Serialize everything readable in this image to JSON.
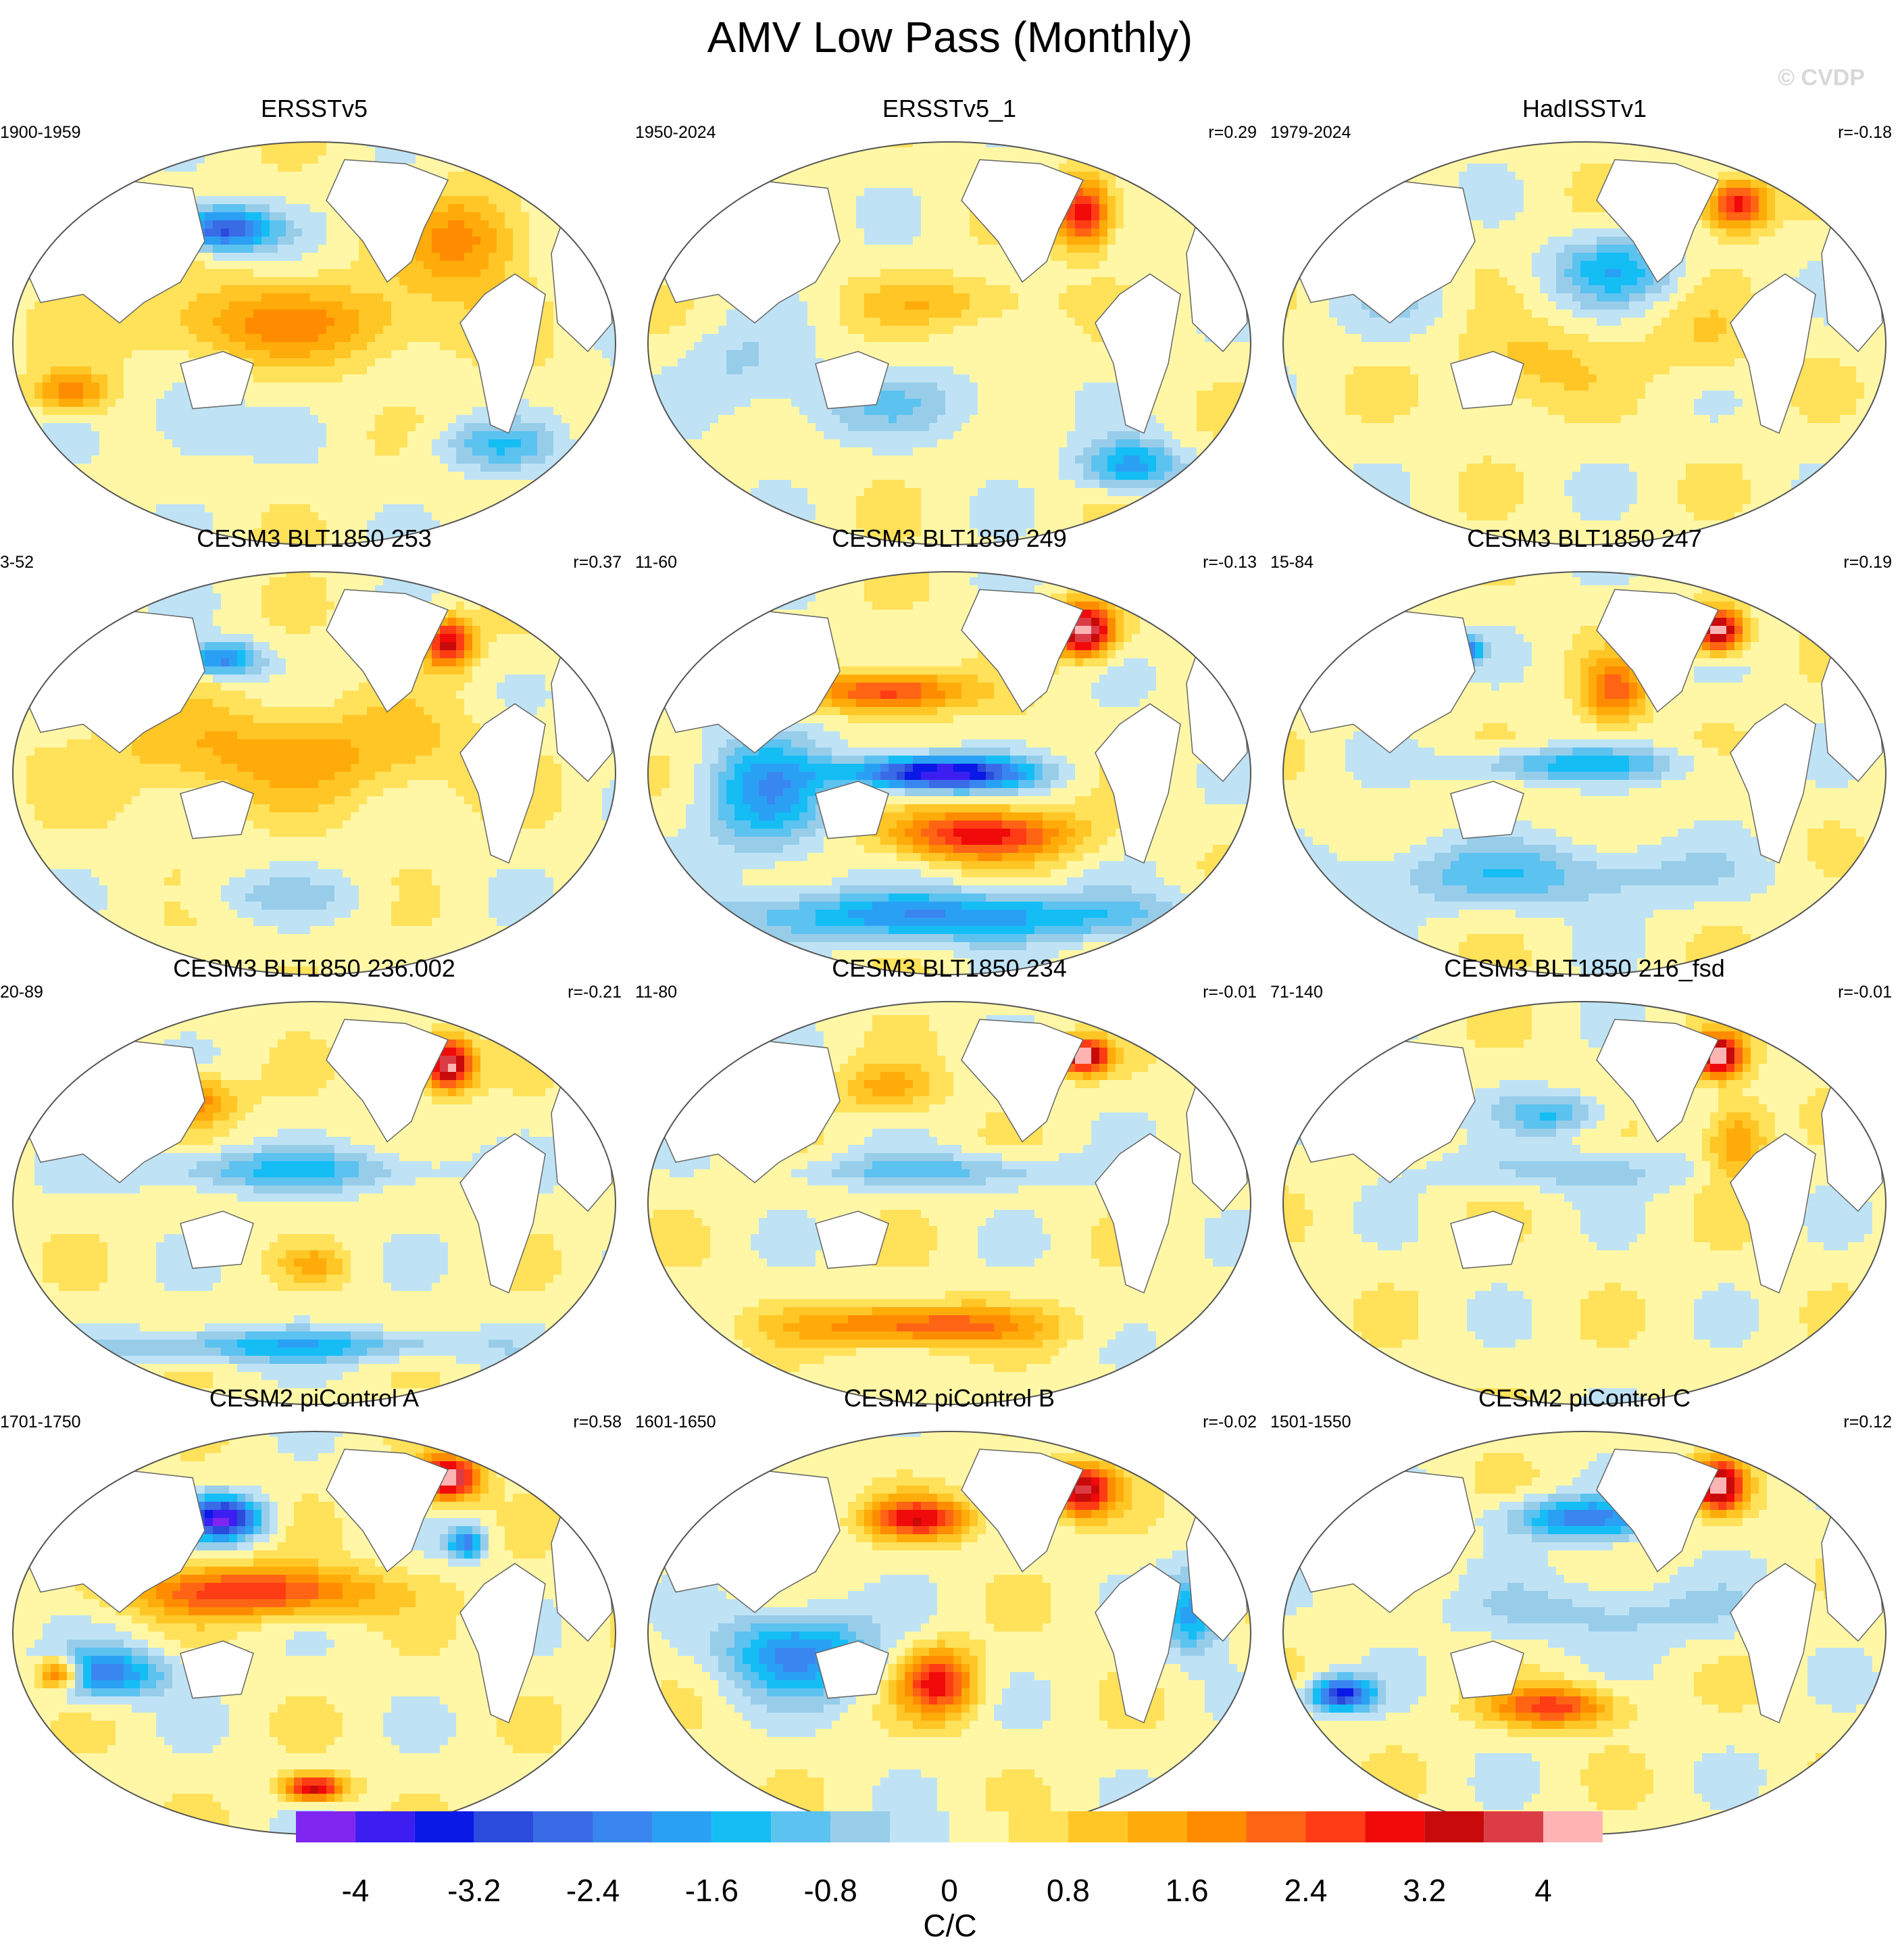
{
  "figure": {
    "title": "AMV Low Pass (Monthly)",
    "watermark": "© CVDP"
  },
  "panels": [
    {
      "title": "ERSSTv5",
      "period": "1900-1959",
      "r": "",
      "variant": 0
    },
    {
      "title": "ERSSTv5_1",
      "period": "1950-2024",
      "r": "r=0.29",
      "variant": 1
    },
    {
      "title": "HadISSTv1",
      "period": "1979-2024",
      "r": "r=-0.18",
      "variant": 2
    },
    {
      "title": "CESM3 BLT1850 253",
      "period": "3-52",
      "r": "r=0.37",
      "variant": 3
    },
    {
      "title": "CESM3 BLT1850 249",
      "period": "11-60",
      "r": "r=-0.13",
      "variant": 4
    },
    {
      "title": "CESM3 BLT1850 247",
      "period": "15-84",
      "r": "r=0.19",
      "variant": 5
    },
    {
      "title": "CESM3 BLT1850 236.002",
      "period": "20-89",
      "r": "r=-0.21",
      "variant": 6
    },
    {
      "title": "CESM3 BLT1850 234",
      "period": "11-80",
      "r": "r=-0.01",
      "variant": 7
    },
    {
      "title": "CESM3 BLT1850 216_fsd",
      "period": "71-140",
      "r": "r=-0.01",
      "variant": 8
    },
    {
      "title": "CESM2 piControl A",
      "period": "1701-1750",
      "r": "r=0.58",
      "variant": 9
    },
    {
      "title": "CESM2 piControl B",
      "period": "1601-1650",
      "r": "r=-0.02",
      "variant": 10
    },
    {
      "title": "CESM2 piControl C",
      "period": "1501-1550",
      "r": "r=0.12",
      "variant": 11
    }
  ],
  "colorbar": {
    "unit": "C/C",
    "tick_labels": [
      "-4",
      "-3.2",
      "-2.4",
      "-1.6",
      "-0.8",
      "0",
      "0.8",
      "1.6",
      "2.4",
      "3.2",
      "4"
    ],
    "colors": [
      "#7f26f0",
      "#3c1ff0",
      "#0a19e6",
      "#2a4bdc",
      "#3a6be6",
      "#3a86f0",
      "#2aa0f5",
      "#15bdf5",
      "#5cc2f0",
      "#98cdea",
      "#bfe3f5",
      "#fff7a6",
      "#ffe15a",
      "#ffc626",
      "#ffab0a",
      "#ff8c00",
      "#ff6414",
      "#ff3c14",
      "#f00a0a",
      "#c80a0a",
      "#dc3c46",
      "#ffb4b4"
    ],
    "levels": [
      -4.4,
      -4,
      -3.6,
      -3.2,
      -2.8,
      -2.4,
      -2,
      -1.6,
      -1.2,
      -0.8,
      -0.4,
      0,
      0.4,
      0.8,
      1.2,
      1.6,
      2,
      2.4,
      2.8,
      3.2,
      3.6,
      4,
      4.4
    ]
  }
}
